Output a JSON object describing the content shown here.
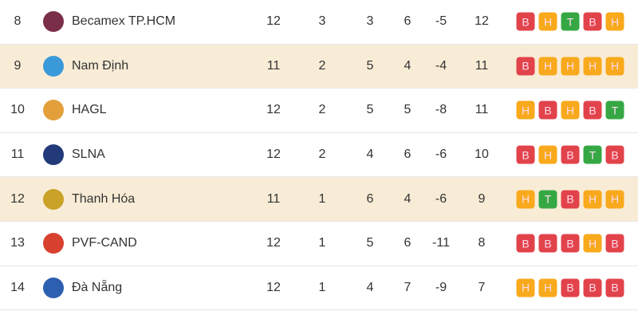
{
  "colors": {
    "B": "#e2434b",
    "H": "#f8a91c",
    "T": "#35a844",
    "highlight": "#f9ecd6"
  },
  "rows": [
    {
      "rank": "8",
      "team": "Becamex TP.HCM",
      "logo": "becamex-crest-icon",
      "logo_color": "#7a2e4a",
      "played": "12",
      "won": "3",
      "drawn": "3",
      "lost": "6",
      "gd": "-5",
      "pts": "12",
      "form": [
        "B",
        "H",
        "T",
        "B",
        "H"
      ],
      "highlight": false
    },
    {
      "rank": "9",
      "team": "Nam Định",
      "logo": "nam-dinh-crest-icon",
      "logo_color": "#3a9ad9",
      "played": "11",
      "won": "2",
      "drawn": "5",
      "lost": "4",
      "gd": "-4",
      "pts": "11",
      "form": [
        "B",
        "H",
        "H",
        "H",
        "H"
      ],
      "highlight": true
    },
    {
      "rank": "10",
      "team": "HAGL",
      "logo": "hagl-crest-icon",
      "logo_color": "#e3a03a",
      "played": "12",
      "won": "2",
      "drawn": "5",
      "lost": "5",
      "gd": "-8",
      "pts": "11",
      "form": [
        "H",
        "B",
        "H",
        "B",
        "T"
      ],
      "highlight": false
    },
    {
      "rank": "11",
      "team": "SLNA",
      "logo": "slna-crest-icon",
      "logo_color": "#223a7a",
      "played": "12",
      "won": "2",
      "drawn": "4",
      "lost": "6",
      "gd": "-6",
      "pts": "10",
      "form": [
        "B",
        "H",
        "B",
        "T",
        "B"
      ],
      "highlight": false
    },
    {
      "rank": "12",
      "team": "Thanh Hóa",
      "logo": "thanh-hoa-crest-icon",
      "logo_color": "#c9a227",
      "played": "11",
      "won": "1",
      "drawn": "6",
      "lost": "4",
      "gd": "-6",
      "pts": "9",
      "form": [
        "H",
        "T",
        "B",
        "H",
        "H"
      ],
      "highlight": true
    },
    {
      "rank": "13",
      "team": "PVF-CAND",
      "logo": "pvf-cand-crest-icon",
      "logo_color": "#d8402f",
      "played": "12",
      "won": "1",
      "drawn": "5",
      "lost": "6",
      "gd": "-11",
      "pts": "8",
      "form": [
        "B",
        "B",
        "B",
        "H",
        "B"
      ],
      "highlight": false
    },
    {
      "rank": "14",
      "team": "Đà Nẵng",
      "logo": "da-nang-crest-icon",
      "logo_color": "#2d5fb0",
      "played": "12",
      "won": "1",
      "drawn": "4",
      "lost": "7",
      "gd": "-9",
      "pts": "7",
      "form": [
        "H",
        "H",
        "B",
        "B",
        "B"
      ],
      "highlight": false
    }
  ]
}
